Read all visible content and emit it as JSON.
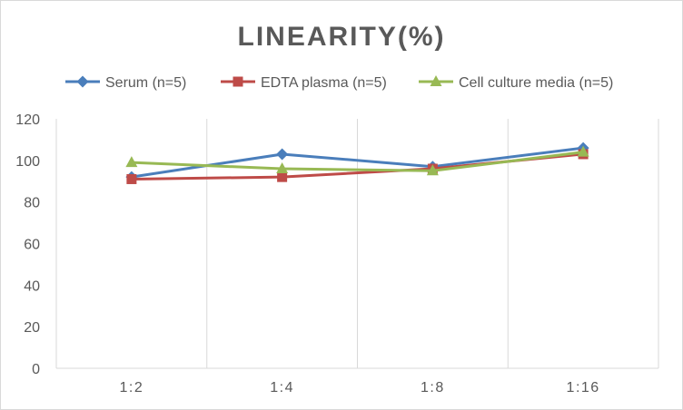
{
  "chart_data": {
    "type": "line",
    "title": "LINEARITY(%)",
    "categories": [
      "1:2",
      "1:4",
      "1:8",
      "1:16"
    ],
    "ylim": [
      0,
      120
    ],
    "yticks": [
      0,
      20,
      40,
      60,
      80,
      100,
      120
    ],
    "grid": "vertical category separators",
    "legend_position": "top",
    "series": [
      {
        "name": "Serum (n=5)",
        "values": [
          92,
          103,
          97,
          106
        ],
        "color": "#4a7ebb",
        "marker": "diamond"
      },
      {
        "name": "EDTA plasma (n=5)",
        "values": [
          91,
          92,
          96,
          103
        ],
        "color": "#be4b48",
        "marker": "square"
      },
      {
        "name": "Cell culture media (n=5)",
        "values": [
          99,
          96,
          95,
          104
        ],
        "color": "#98b954",
        "marker": "triangle"
      }
    ]
  }
}
